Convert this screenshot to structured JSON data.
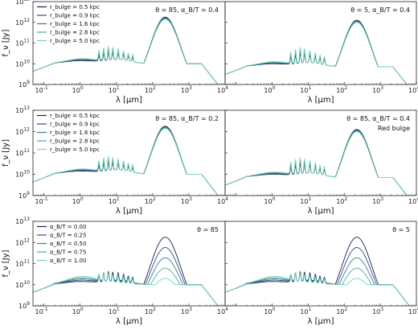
{
  "figure": {
    "xlabel": "λ [μm]",
    "ylabel": "f_ν [Jy]",
    "x_ticks": [
      "10",
      "10",
      "10",
      "10",
      "10",
      "10"
    ],
    "x_tick_exponents": [
      "-1",
      "0",
      "1",
      "2",
      "3",
      "4"
    ],
    "y_ticks": [
      "10",
      "10",
      "10",
      "10",
      "10"
    ],
    "y_tick_exponents": [
      "9",
      "10",
      "11",
      "12",
      "13"
    ]
  },
  "colors": {
    "series": [
      "#1f1f3d",
      "#2c4f8c",
      "#3b7a9c",
      "#4fa89c",
      "#7fd6b5"
    ]
  },
  "chart_data": [
    {
      "type": "line",
      "panel": "row1-left",
      "annotation": "θ = 85, α_B/T = 0.4",
      "xscale": "log",
      "yscale": "log",
      "xlim": [
        0.05,
        10000
      ],
      "ylim": [
        1000000000.0,
        10000000000000.0
      ],
      "series": [
        {
          "name": "r_bulge = 0.5 kpc",
          "bulge_frac": 0.0
        },
        {
          "name": "r_bulge = 0.9 kpc",
          "bulge_frac": 0.25
        },
        {
          "name": "r_bulge = 1.6 kpc",
          "bulge_frac": 0.5
        },
        {
          "name": "r_bulge = 2.8 kpc",
          "bulge_frac": 0.75
        },
        {
          "name": "r_bulge = 5.0 kpc",
          "bulge_frac": 1.0
        }
      ]
    },
    {
      "type": "line",
      "panel": "row1-right",
      "annotation": "θ = 5, α_B/T = 0.4",
      "xscale": "log",
      "yscale": "log",
      "xlim": [
        0.05,
        10000
      ],
      "ylim": [
        1000000000.0,
        10000000000000.0
      ]
    },
    {
      "type": "line",
      "panel": "row2-left",
      "annotation": "θ = 85, α_B/T = 0.2",
      "xscale": "log",
      "yscale": "log",
      "xlim": [
        0.05,
        10000
      ],
      "ylim": [
        1000000000.0,
        10000000000000.0
      ],
      "series": [
        {
          "name": "r_bulge = 0.5 kpc"
        },
        {
          "name": "r_bulge = 0.9 kpc"
        },
        {
          "name": "r_bulge = 1.6 kpc"
        },
        {
          "name": "r_bulge = 2.8 kpc"
        },
        {
          "name": "r_bulge = 5.0 kpc"
        }
      ]
    },
    {
      "type": "line",
      "panel": "row2-right",
      "annotation": "θ = 85, α_B/T = 0.4",
      "annotation2": "Red bulge",
      "xscale": "log",
      "yscale": "log",
      "xlim": [
        0.05,
        10000
      ],
      "ylim": [
        1000000000.0,
        10000000000000.0
      ]
    },
    {
      "type": "line",
      "panel": "row3-left",
      "annotation": "θ = 85",
      "xscale": "log",
      "yscale": "log",
      "xlim": [
        0.05,
        10000
      ],
      "ylim": [
        1000000000.0,
        10000000000000.0
      ],
      "series": [
        {
          "name": "α_B/T = 0.00"
        },
        {
          "name": "α_B/T = 0.25"
        },
        {
          "name": "α_B/T = 0.50"
        },
        {
          "name": "α_B/T = 0.75"
        },
        {
          "name": "α_B/T = 1.00"
        }
      ]
    },
    {
      "type": "line",
      "panel": "row3-right",
      "annotation": "θ = 5",
      "xscale": "log",
      "yscale": "log",
      "xlim": [
        0.05,
        10000
      ],
      "ylim": [
        1000000000.0,
        10000000000000.0
      ]
    }
  ]
}
